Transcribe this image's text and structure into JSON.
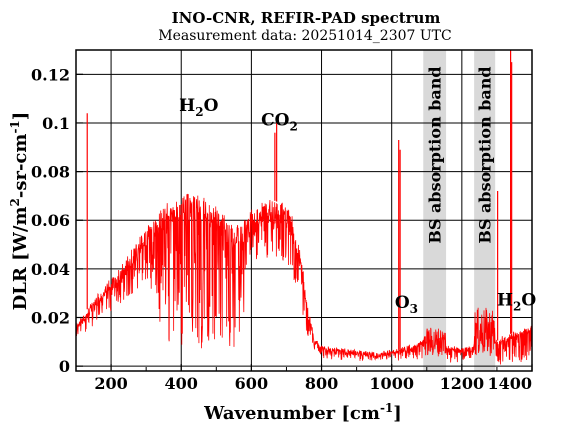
{
  "chart_data": {
    "type": "line",
    "title": "INO-CNR, REFIR-PAD spectrum",
    "subtitle": "Measurement data: 20251014_2307 UTC",
    "xlabel": {
      "main": "Wavenumber [cm",
      "sup": "-1",
      "end": "]"
    },
    "ylabel": {
      "p1": "DLR [W/m",
      "sup": "2",
      "p2": "-sr-cm",
      "sup2": "-1",
      "p3": "]"
    },
    "xlim": [
      100,
      1400
    ],
    "ylim": [
      -0.002,
      0.13
    ],
    "grid": true,
    "x_ticks": [
      200,
      400,
      600,
      800,
      1000,
      1200,
      1400
    ],
    "x_tick_labels": [
      "200",
      "400",
      "600",
      "800",
      "1000",
      "1200",
      "1400"
    ],
    "y_ticks": [
      0,
      0.02,
      0.04,
      0.06,
      0.08,
      0.1,
      0.12
    ],
    "y_tick_labels": [
      "0",
      "0.02",
      "0.04",
      "0.06",
      "0.08",
      "0.1",
      "0.12"
    ],
    "series_color": "#ff0000",
    "band_color": "#d9d9d9",
    "bands": [
      {
        "x0": 1090,
        "x1": 1155,
        "label": "BS absorption band"
      },
      {
        "x0": 1235,
        "x1": 1295,
        "label": "BS absorption band"
      }
    ],
    "annotations": [
      {
        "id": "h2o-left",
        "base": "H",
        "sub": "2",
        "tail": "O",
        "x": 450,
        "y": 0.105
      },
      {
        "id": "co2",
        "base": "CO",
        "sub": "2",
        "tail": "",
        "x": 680,
        "y": 0.099
      },
      {
        "id": "o3",
        "base": "O",
        "sub": "3",
        "tail": "",
        "x": 1042,
        "y": 0.024
      },
      {
        "id": "h2o-right",
        "base": "H",
        "sub": "2",
        "tail": "O",
        "x": 1356,
        "y": 0.025
      }
    ],
    "envelope": [
      [
        100,
        0.017
      ],
      [
        120,
        0.021
      ],
      [
        150,
        0.027
      ],
      [
        200,
        0.036
      ],
      [
        250,
        0.045
      ],
      [
        300,
        0.057
      ],
      [
        350,
        0.066
      ],
      [
        400,
        0.071
      ],
      [
        450,
        0.07
      ],
      [
        500,
        0.066
      ],
      [
        550,
        0.056
      ],
      [
        600,
        0.064
      ],
      [
        650,
        0.069
      ],
      [
        700,
        0.066
      ],
      [
        720,
        0.06
      ],
      [
        740,
        0.047
      ],
      [
        760,
        0.025
      ],
      [
        780,
        0.012
      ],
      [
        800,
        0.008
      ],
      [
        850,
        0.007
      ],
      [
        900,
        0.006
      ],
      [
        950,
        0.005
      ],
      [
        1000,
        0.006
      ],
      [
        1050,
        0.008
      ],
      [
        1090,
        0.01
      ],
      [
        1155,
        0.008
      ],
      [
        1200,
        0.007
      ],
      [
        1235,
        0.008
      ],
      [
        1295,
        0.01
      ],
      [
        1320,
        0.012
      ],
      [
        1350,
        0.014
      ],
      [
        1400,
        0.016
      ]
    ],
    "line_depth": [
      [
        100,
        0.35
      ],
      [
        300,
        0.4
      ],
      [
        360,
        0.9
      ],
      [
        550,
        0.9
      ],
      [
        620,
        0.35
      ],
      [
        700,
        0.35
      ],
      [
        760,
        0.5
      ],
      [
        900,
        0.5
      ],
      [
        1000,
        0.5
      ],
      [
        1295,
        0.9
      ],
      [
        1400,
        0.9
      ]
    ],
    "spikes": [
      {
        "x": 132,
        "y": 0.104
      },
      {
        "x": 667,
        "y": 0.096
      },
      {
        "x": 672,
        "y": 0.102
      },
      {
        "x": 1020,
        "y": 0.093
      },
      {
        "x": 1024,
        "y": 0.089
      },
      {
        "x": 1302,
        "y": 0.072
      },
      {
        "x": 1339,
        "y": 0.13
      },
      {
        "x": 1342,
        "y": 0.125
      }
    ]
  }
}
